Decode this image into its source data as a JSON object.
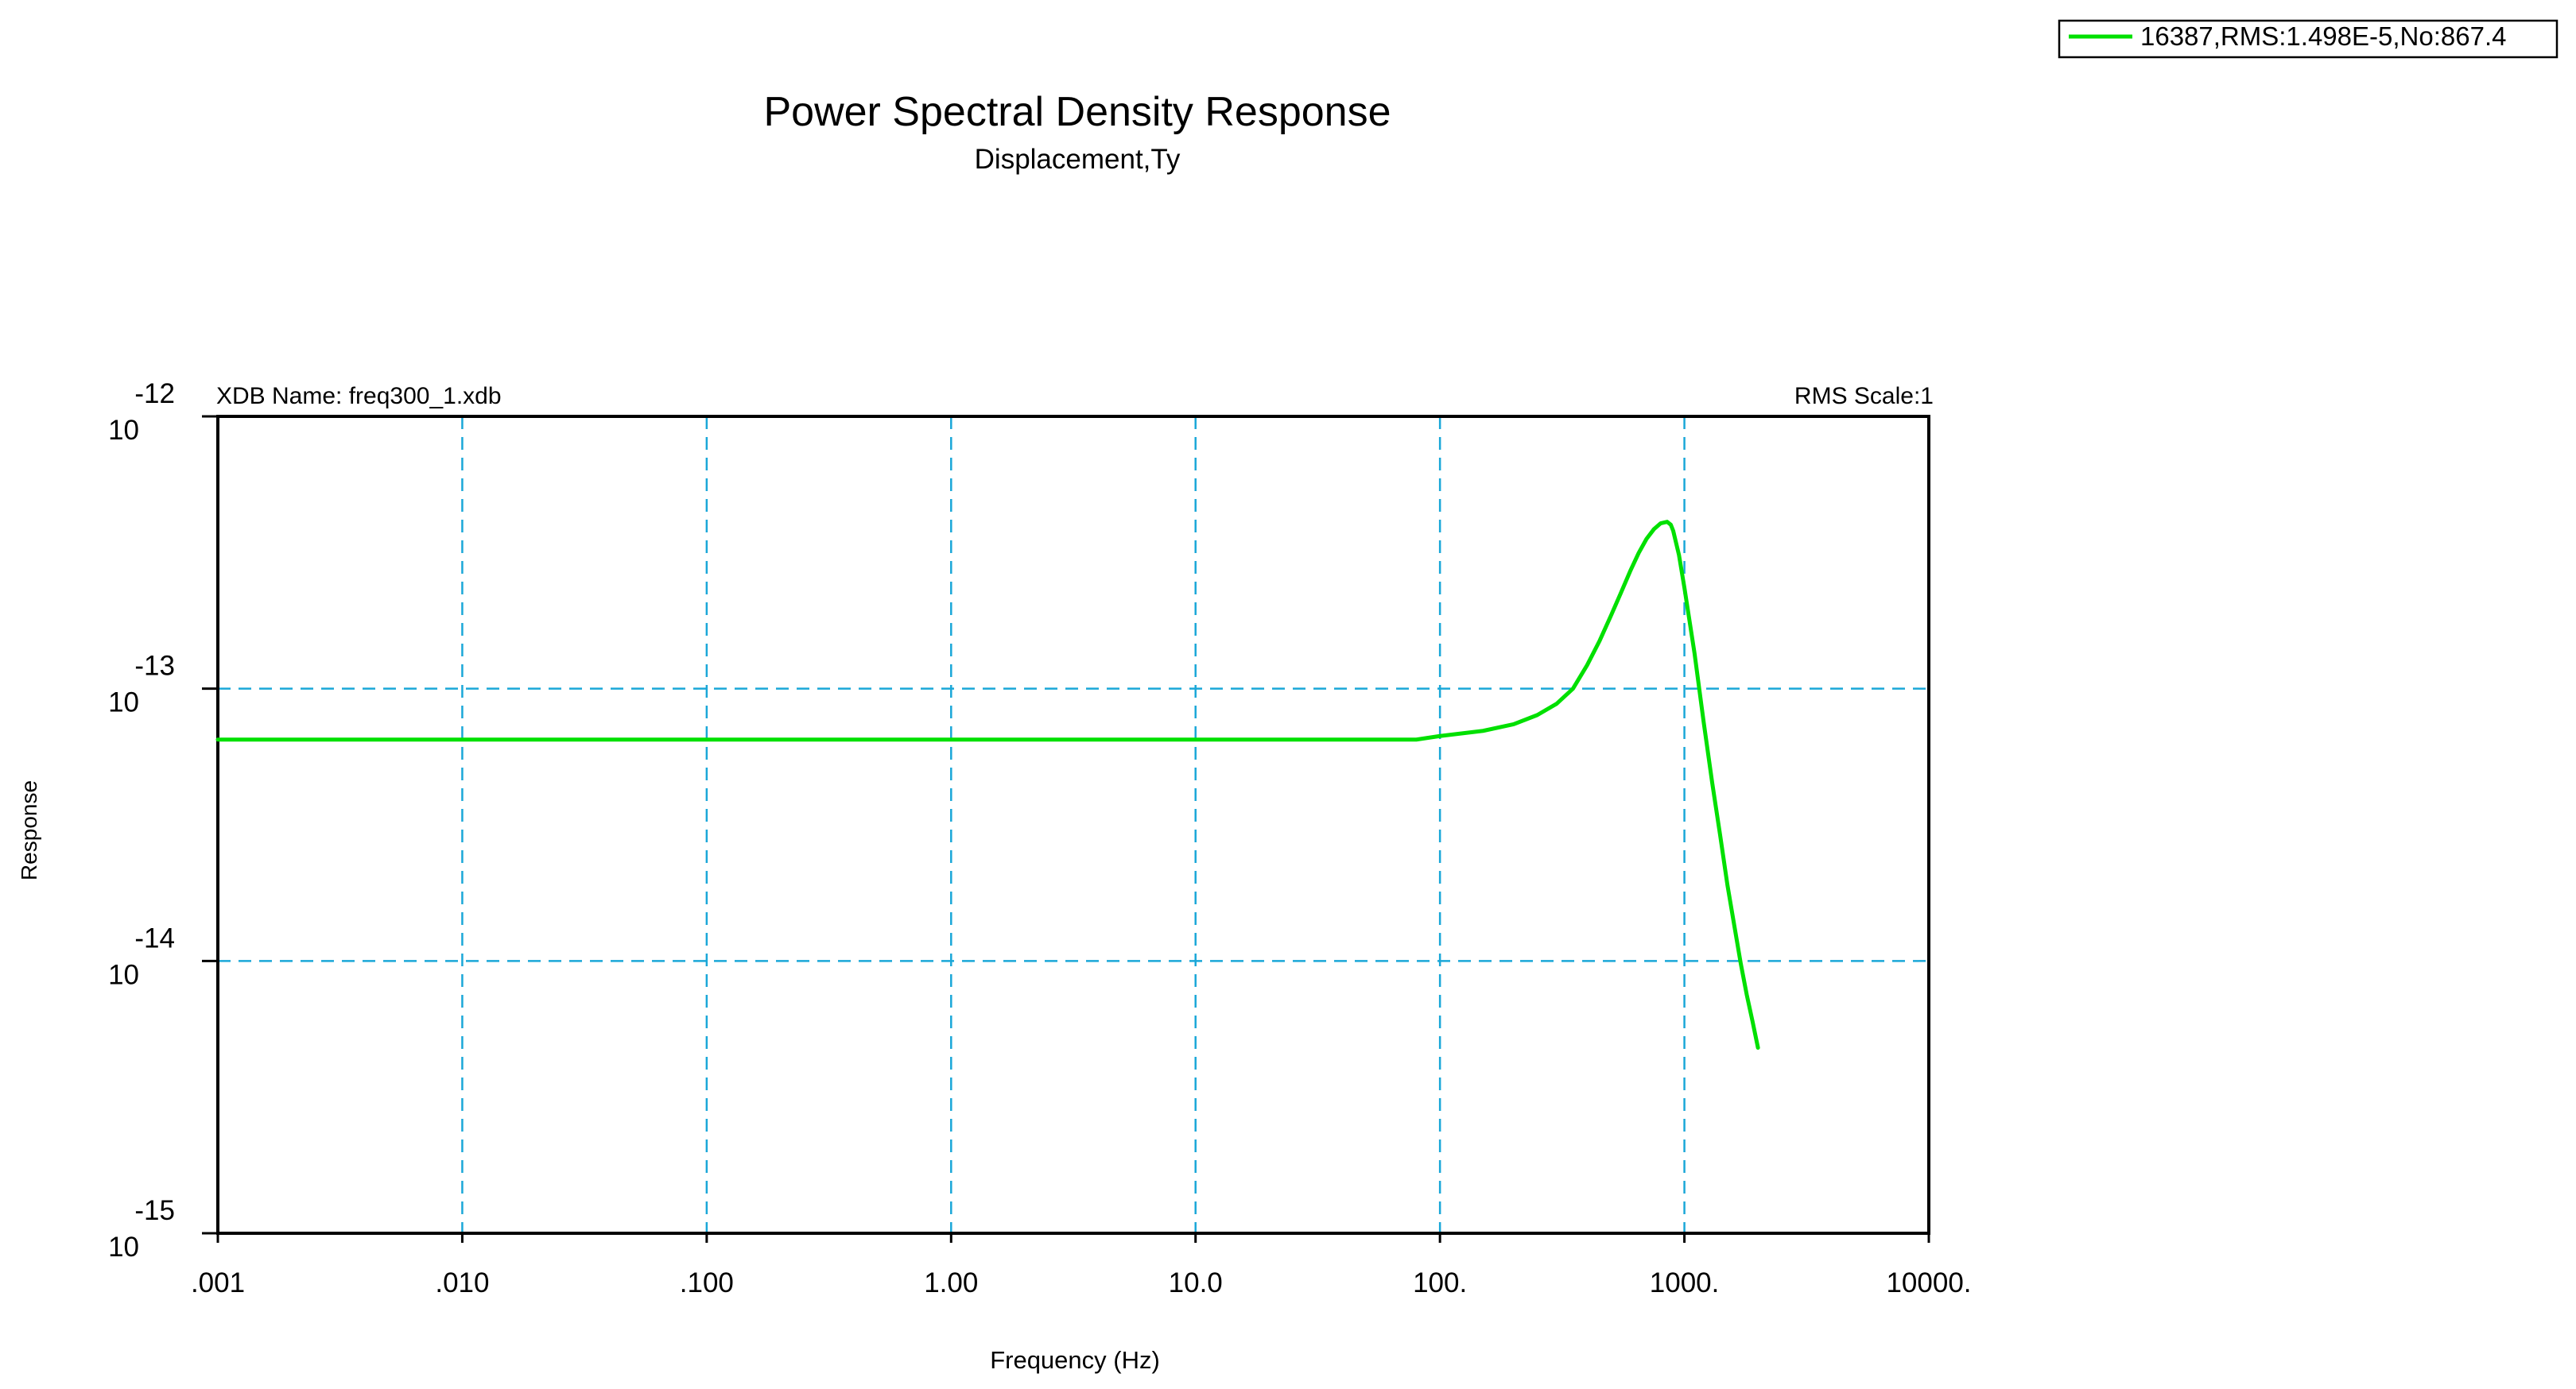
{
  "chart_data": {
    "type": "line",
    "title": "Power Spectral Density Response",
    "subtitle": "Displacement,Ty",
    "xlabel": "Frequency (Hz)",
    "ylabel": "Response",
    "x_scale": "log",
    "y_scale": "log",
    "xlim": [
      0.001,
      10000
    ],
    "ylim": [
      1e-15,
      1e-12
    ],
    "grid": true,
    "legend_position": "top-right",
    "header_left": "XDB Name: freq300_1.xdb",
    "header_right": "RMS Scale:1",
    "x_ticks": [
      {
        "value": 0.001,
        "label": ".001"
      },
      {
        "value": 0.01,
        "label": ".010"
      },
      {
        "value": 0.1,
        "label": ".100"
      },
      {
        "value": 1,
        "label": "1.00"
      },
      {
        "value": 10,
        "label": "10.0"
      },
      {
        "value": 100,
        "label": "100."
      },
      {
        "value": 1000,
        "label": "1000."
      },
      {
        "value": 10000,
        "label": "10000."
      }
    ],
    "y_ticks": [
      {
        "value": 1e-12,
        "base": "10",
        "exponent": "-12"
      },
      {
        "value": 1e-13,
        "base": "10",
        "exponent": "-13"
      },
      {
        "value": 1e-14,
        "base": "10",
        "exponent": "-14"
      },
      {
        "value": 1e-15,
        "base": "10",
        "exponent": "-15"
      }
    ],
    "series": [
      {
        "name": "16387,RMS:1.498E-5,No:867.4",
        "color": "#00e000",
        "x": [
          0.001,
          0.01,
          0.1,
          1,
          10,
          80,
          100,
          150,
          200,
          250,
          300,
          350,
          400,
          450,
          500,
          550,
          600,
          650,
          700,
          750,
          800,
          850,
          880,
          900,
          950,
          1000,
          1100,
          1200,
          1300,
          1400,
          1500,
          1600,
          1700,
          1800,
          1900,
          2000
        ],
        "y": [
          6.5e-14,
          6.5e-14,
          6.5e-14,
          6.5e-14,
          6.5e-14,
          6.5e-14,
          6.7e-14,
          7e-14,
          7.4e-14,
          8e-14,
          8.8e-14,
          1e-13,
          1.22e-13,
          1.5e-13,
          1.85e-13,
          2.25e-13,
          2.7e-13,
          3.15e-13,
          3.55e-13,
          3.85e-13,
          4.05e-13,
          4.1e-13,
          4e-13,
          3.8e-13,
          3.1e-13,
          2.35e-13,
          1.35e-13,
          7.5e-14,
          4.5e-14,
          2.9e-14,
          1.9e-14,
          1.35e-14,
          9.8e-15,
          7.5e-15,
          6e-15,
          4.8e-15
        ]
      }
    ]
  }
}
